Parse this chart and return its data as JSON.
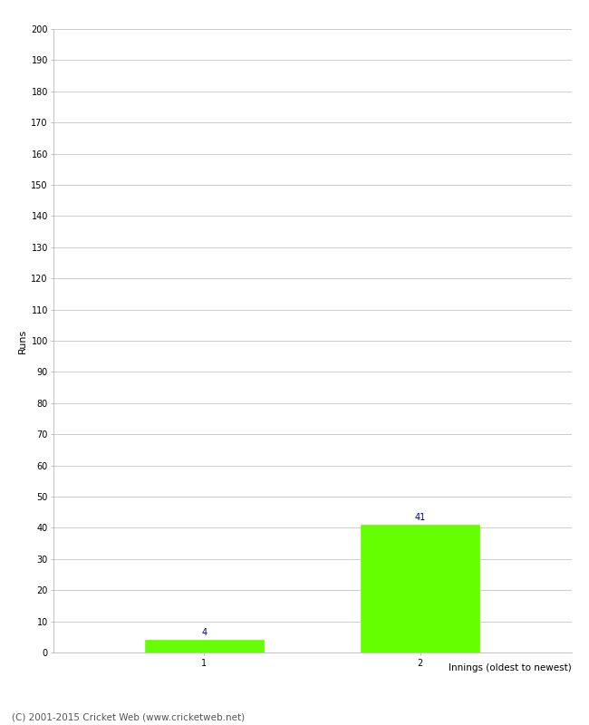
{
  "categories": [
    "1",
    "2"
  ],
  "values": [
    4,
    41
  ],
  "bar_color": "#66ff00",
  "bar_edge_color": "#66ff00",
  "xlabel": "Innings (oldest to newest)",
  "ylabel": "Runs",
  "ylim": [
    0,
    200
  ],
  "yticks": [
    0,
    10,
    20,
    30,
    40,
    50,
    60,
    70,
    80,
    90,
    100,
    110,
    120,
    130,
    140,
    150,
    160,
    170,
    180,
    190,
    200
  ],
  "annotation_color": "#000080",
  "annotation_fontsize": 7,
  "footer_text": "(C) 2001-2015 Cricket Web (www.cricketweb.net)",
  "footer_fontsize": 7.5,
  "background_color": "#ffffff",
  "grid_color": "#cccccc",
  "bar_width": 0.55,
  "x_positions": [
    1,
    2
  ],
  "xlim": [
    0.3,
    2.7
  ]
}
